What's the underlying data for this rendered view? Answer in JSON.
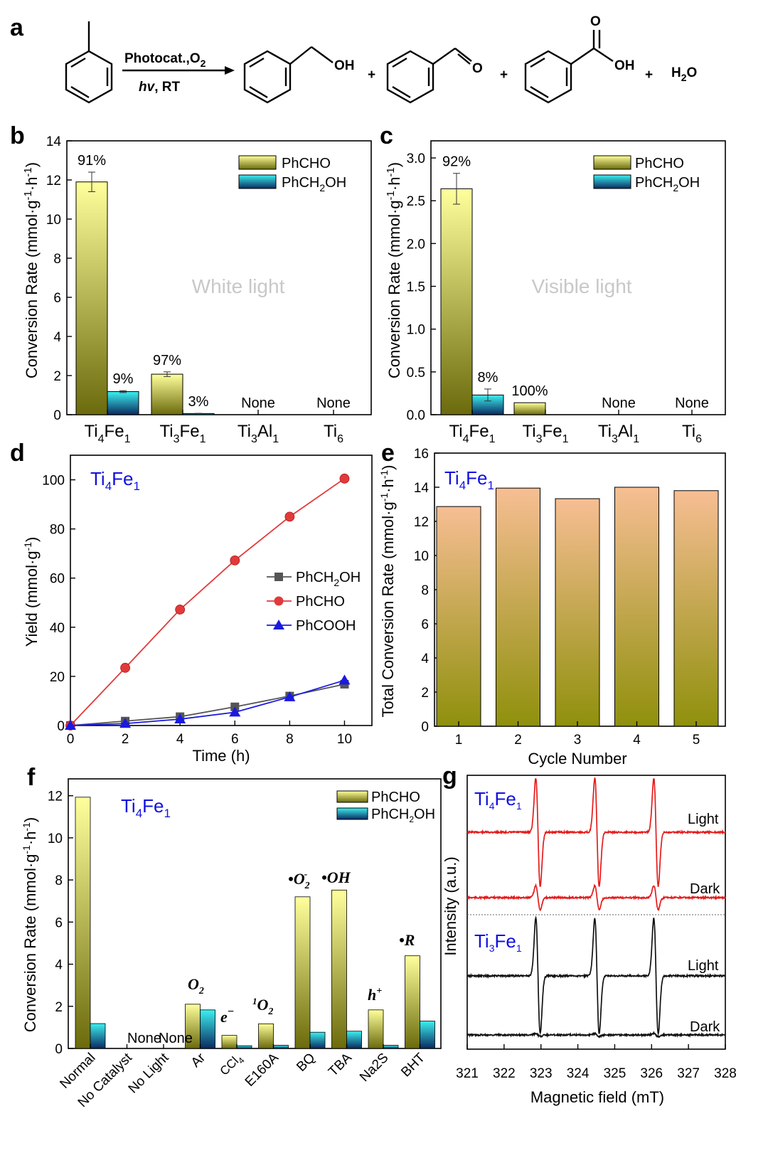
{
  "panel_labels": [
    "a",
    "b",
    "c",
    "d",
    "e",
    "f",
    "g"
  ],
  "reaction": {
    "conditions_top": "Photocat.,O",
    "conditions_top_sub": "2",
    "conditions_bottom_italic": "hv",
    "conditions_bottom_rest": ", RT",
    "oh_label": "OH",
    "o_label": "O",
    "cooh_o_label": "O",
    "cooh_oh_label": "OH",
    "plus": "+",
    "water": "H",
    "water_sub": "2",
    "water_end": "O"
  },
  "colors": {
    "phcho_top": "#ffff9c",
    "phcho_bottom": "#6b6a0c",
    "phch2oh_top": "#3cf0f0",
    "phch2oh_bottom": "#0a2a60",
    "cycle_top": "#f7be93",
    "cycle_bottom": "#8f900c",
    "series_alcohol": "#555555",
    "series_aldehyde": "#e23a3a",
    "series_acid": "#1a1ae0",
    "epr_ti4": "#e51b1b",
    "epr_ti3": "#111111",
    "label_blue": "#1010e0"
  },
  "chart_data": [
    {
      "panel": "b",
      "type": "bar",
      "ylabel": "Conversion Rate (mmol·g-1·h-1)",
      "ylim": [
        0,
        14
      ],
      "yticks": [
        0,
        2,
        4,
        6,
        8,
        10,
        12,
        14
      ],
      "categories": [
        {
          "base": "Ti",
          "s1": "4",
          "mid": "Fe",
          "s2": "1"
        },
        {
          "base": "Ti",
          "s1": "3",
          "mid": "Fe",
          "s2": "1"
        },
        {
          "base": "Ti",
          "s1": "3",
          "mid": "Al",
          "s2": "1"
        },
        {
          "base": "Ti",
          "s1": "6",
          "mid": "",
          "s2": ""
        }
      ],
      "series": [
        {
          "name": "PhCHO",
          "values": [
            11.9,
            2.07,
            0,
            0
          ],
          "errors": [
            0.5,
            0.12,
            0,
            0
          ],
          "labels": [
            "91%",
            "97%",
            "None",
            "None"
          ]
        },
        {
          "name": "PhCH2OH",
          "values": [
            1.18,
            0.06,
            0,
            0
          ],
          "errors": [
            0.05,
            0.01,
            0,
            0
          ],
          "labels": [
            "9%",
            "3%",
            "",
            ""
          ]
        }
      ],
      "legend": [
        "PhCHO",
        "PhCH2OH"
      ],
      "annotation": "White light"
    },
    {
      "panel": "c",
      "type": "bar",
      "ylabel": "Conversion Rate (mmol·g-1·h-1)",
      "ylim": [
        0,
        3.2
      ],
      "yticks": [
        0.0,
        0.5,
        1.0,
        1.5,
        2.0,
        2.5,
        3.0
      ],
      "categories": [
        {
          "base": "Ti",
          "s1": "4",
          "mid": "Fe",
          "s2": "1"
        },
        {
          "base": "Ti",
          "s1": "3",
          "mid": "Fe",
          "s2": "1"
        },
        {
          "base": "Ti",
          "s1": "3",
          "mid": "Al",
          "s2": "1"
        },
        {
          "base": "Ti",
          "s1": "6",
          "mid": "",
          "s2": ""
        }
      ],
      "series": [
        {
          "name": "PhCHO",
          "values": [
            2.64,
            0.14,
            0,
            0
          ],
          "errors": [
            0.18,
            0,
            0,
            0
          ],
          "labels": [
            "92%",
            "100%",
            "None",
            "None"
          ]
        },
        {
          "name": "PhCH2OH",
          "values": [
            0.23,
            0,
            0,
            0
          ],
          "errors": [
            0.07,
            0,
            0,
            0
          ],
          "labels": [
            "8%",
            "",
            "",
            ""
          ]
        }
      ],
      "legend": [
        "PhCHO",
        "PhCH2OH"
      ],
      "annotation": "Visible light"
    },
    {
      "panel": "d",
      "type": "line",
      "title_base": "Ti",
      "title_s1": "4",
      "title_mid": "Fe",
      "title_s2": "1",
      "xlabel": "Time (h)",
      "ylabel": "Yield (mmol·g-1)",
      "xlim": [
        0,
        11
      ],
      "ylim": [
        0,
        110
      ],
      "xticks": [
        0,
        2,
        4,
        6,
        8,
        10
      ],
      "yticks": [
        0,
        20,
        40,
        60,
        80,
        100
      ],
      "x": [
        0,
        2,
        4,
        6,
        8,
        10
      ],
      "series": [
        {
          "name": "PhCH2OH",
          "values": [
            0,
            1.8,
            3.6,
            7.6,
            12.0,
            16.8
          ],
          "marker": "square"
        },
        {
          "name": "PhCHO",
          "values": [
            0,
            23.5,
            47.2,
            67.2,
            85.0,
            100.5
          ],
          "marker": "circle"
        },
        {
          "name": "PhCOOH",
          "values": [
            0,
            0.8,
            2.6,
            5.4,
            11.6,
            18.4
          ],
          "marker": "triangle"
        }
      ],
      "legend": [
        "PhCH2OH",
        "PhCHO",
        "PhCOOH"
      ]
    },
    {
      "panel": "e",
      "type": "bar",
      "title_base": "Ti",
      "title_s1": "4",
      "title_mid": "Fe",
      "title_s2": "1",
      "xlabel": "Cycle Number",
      "ylabel": "Total Conversion Rate (mmol·g-1·h-1)",
      "ylim": [
        0,
        16
      ],
      "yticks": [
        0,
        2,
        4,
        6,
        8,
        10,
        12,
        14,
        16
      ],
      "categories": [
        "1",
        "2",
        "3",
        "4",
        "5"
      ],
      "values": [
        12.87,
        13.95,
        13.33,
        14.0,
        13.8
      ]
    },
    {
      "panel": "f",
      "type": "bar",
      "title_base": "Ti",
      "title_s1": "4",
      "title_mid": "Fe",
      "title_s2": "1",
      "ylabel": "Conversion Rate (mmol·g-1·h-1)",
      "ylim": [
        0,
        12.8
      ],
      "yticks": [
        0,
        2,
        4,
        6,
        8,
        10,
        12
      ],
      "categories": [
        "Normal",
        "No Catalyst",
        "No Light",
        "Ar",
        "CCl4",
        "E160A",
        "BQ",
        "TBA",
        "Na2S",
        "BHT"
      ],
      "series": [
        {
          "name": "PhCHO",
          "values": [
            11.93,
            0,
            0,
            2.1,
            0.62,
            1.17,
            7.2,
            7.52,
            1.83,
            4.4
          ]
        },
        {
          "name": "PhCH2OH",
          "values": [
            1.18,
            0,
            0,
            1.83,
            0.13,
            0.15,
            0.77,
            0.82,
            0.15,
            1.3
          ]
        }
      ],
      "none_labels": [
        "None",
        "None"
      ],
      "scavenger_labels": [
        "O2",
        "e−",
        "1O2",
        "•O2-",
        "•OH",
        "h+",
        "•R"
      ],
      "legend": [
        "PhCHO",
        "PhCH2OH"
      ]
    },
    {
      "panel": "g",
      "type": "line",
      "xlabel": "Magnetic field (mT)",
      "ylabel": "Intensity (a.u.)",
      "xlim": [
        321,
        328
      ],
      "xticks": [
        321,
        322,
        323,
        324,
        325,
        326,
        327,
        328
      ],
      "signal_centers": [
        322.92,
        324.52,
        326.12
      ],
      "series": [
        {
          "name": "Ti4Fe1 Light",
          "group": "Ti4Fe1",
          "label": "Light",
          "amplitude": 1.0
        },
        {
          "name": "Ti4Fe1 Dark",
          "group": "Ti4Fe1",
          "label": "Dark",
          "amplitude": 0.22
        },
        {
          "name": "Ti3Fe1 Light",
          "group": "Ti3Fe1",
          "label": "Light",
          "amplitude": 1.07
        },
        {
          "name": "Ti3Fe1 Dark",
          "group": "Ti3Fe1",
          "label": "Dark",
          "amplitude": 0.03
        }
      ],
      "group_labels": [
        {
          "base": "Ti",
          "s1": "4",
          "mid": "Fe",
          "s2": "1"
        },
        {
          "base": "Ti",
          "s1": "3",
          "mid": "Fe",
          "s2": "1"
        }
      ]
    }
  ]
}
